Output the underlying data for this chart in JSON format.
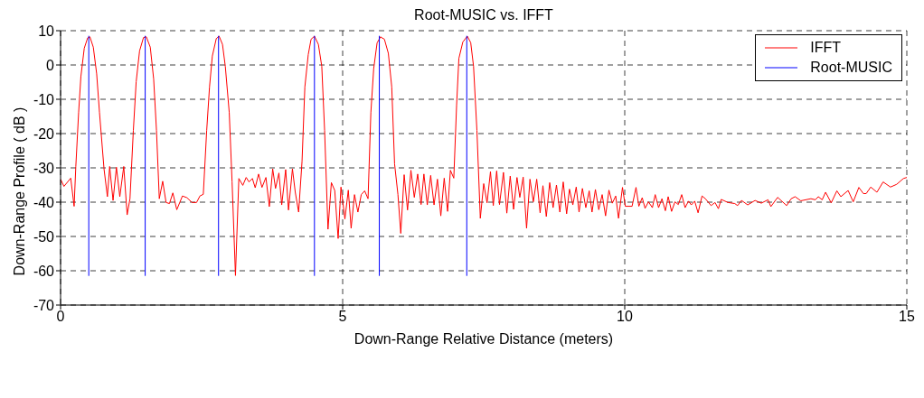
{
  "chart_data": {
    "type": "line",
    "title": "Root-MUSIC vs. IFFT",
    "xlabel": "Down-Range Relative Distance (meters)",
    "ylabel": "Down-Range Profile ( dB )",
    "xlim": [
      0,
      15
    ],
    "xticks": [
      0,
      5,
      10,
      15
    ],
    "ylim": [
      -70,
      10
    ],
    "yticks": [
      -70,
      -60,
      -50,
      -40,
      -30,
      -20,
      -10,
      0,
      10
    ],
    "grid": true,
    "legend": "top right",
    "line_style": "solid",
    "series": [
      {
        "name": "IFFT",
        "color": "#ff0000",
        "x": [
          0,
          0.06,
          0.18,
          0.24,
          0.27,
          0.32,
          0.36,
          0.42,
          0.48,
          0.52,
          0.58,
          0.64,
          0.69,
          0.77,
          0.83,
          0.87,
          0.93,
          0.99,
          1.05,
          1.12,
          1.18,
          1.23,
          1.29,
          1.34,
          1.4,
          1.47,
          1.52,
          1.59,
          1.65,
          1.7,
          1.75,
          1.81,
          1.87,
          1.93,
          1.99,
          2.06,
          2.16,
          2.24,
          2.33,
          2.41,
          2.47,
          2.53,
          2.59,
          2.64,
          2.69,
          2.76,
          2.81,
          2.87,
          2.92,
          2.99,
          3.04,
          3.1,
          3.16,
          3.23,
          3.29,
          3.34,
          3.4,
          3.45,
          3.51,
          3.57,
          3.64,
          3.7,
          3.76,
          3.81,
          3.87,
          3.92,
          3.99,
          4.04,
          4.11,
          4.16,
          4.22,
          4.28,
          4.33,
          4.39,
          4.44,
          4.5,
          4.57,
          4.63,
          4.68,
          4.74,
          4.8,
          4.86,
          4.92,
          4.97,
          5.04,
          5.1,
          5.15,
          5.21,
          5.27,
          5.33,
          5.39,
          5.45,
          5.5,
          5.55,
          5.61,
          5.67,
          5.74,
          5.81,
          5.87,
          5.92,
          5.98,
          6.03,
          6.09,
          6.15,
          6.21,
          6.27,
          6.33,
          6.39,
          6.44,
          6.5,
          6.56,
          6.62,
          6.68,
          6.74,
          6.8,
          6.86,
          6.91,
          6.97,
          7.02,
          7.06,
          7.13,
          7.21,
          7.27,
          7.32,
          7.38,
          7.44,
          7.5,
          7.56,
          7.62,
          7.67,
          7.73,
          7.78,
          7.85,
          7.91,
          7.97,
          8.03,
          8.09,
          8.14,
          8.2,
          8.26,
          8.32,
          8.38,
          8.44,
          8.5,
          8.55,
          8.61,
          8.67,
          8.73,
          8.79,
          8.85,
          8.91,
          8.97,
          9.02,
          9.08,
          9.14,
          9.19,
          9.25,
          9.31,
          9.37,
          9.42,
          9.48,
          9.54,
          9.6,
          9.66,
          9.72,
          9.78,
          9.84,
          9.89,
          9.96,
          10.01,
          10.13,
          10.2,
          10.25,
          10.31,
          10.36,
          10.42,
          10.49,
          10.54,
          10.6,
          10.66,
          10.72,
          10.77,
          10.83,
          10.89,
          10.95,
          11.01,
          11.07,
          11.13,
          11.18,
          11.24,
          11.3,
          11.37,
          11.43,
          11.53,
          11.6,
          11.66,
          11.71,
          11.83,
          11.95,
          12.0,
          12.07,
          12.18,
          12.31,
          12.42,
          12.54,
          12.59,
          12.71,
          12.87,
          12.95,
          13.02,
          13.12,
          13.3,
          13.38,
          13.43,
          13.5,
          13.56,
          13.66,
          13.76,
          13.83,
          13.96,
          14.05,
          14.15,
          14.23,
          14.28,
          14.36,
          14.47,
          14.58,
          14.71,
          14.82,
          14.94,
          15
        ],
        "values": [
          -33.3,
          -35.4,
          -33,
          -41.2,
          -29.6,
          -13.9,
          -3.4,
          4.9,
          7.9,
          8.2,
          5.2,
          -2.6,
          -13.9,
          -30.3,
          -38.4,
          -29.6,
          -39.5,
          -29.8,
          -38.4,
          -29.6,
          -43.7,
          -39,
          -19.1,
          -4.9,
          4.1,
          8,
          8.2,
          5.2,
          -4.1,
          -19.1,
          -39,
          -33.9,
          -40.1,
          -40.4,
          -37.3,
          -42.2,
          -38.2,
          -38.7,
          -40.1,
          -40.1,
          -38.2,
          -37.7,
          -19.1,
          -6.4,
          2.6,
          7.7,
          8.4,
          6,
          -0.4,
          -13.9,
          -34.1,
          -61.4,
          -33.1,
          -35.1,
          -32.8,
          -34.1,
          -33.1,
          -35.8,
          -31.8,
          -35.7,
          -32.8,
          -41.3,
          -30.3,
          -36,
          -31.5,
          -40.8,
          -30.5,
          -42.3,
          -30.3,
          -37.1,
          -42.9,
          -28.1,
          -6.4,
          3,
          7.5,
          8.4,
          6,
          -0.4,
          -19.1,
          -47.9,
          -34.3,
          -36.6,
          -50.6,
          -35.6,
          -44.9,
          -36.5,
          -47.6,
          -37.8,
          -42.9,
          -37.8,
          -36.7,
          -39,
          -13.9,
          -1.1,
          6.4,
          8.2,
          7.5,
          3.4,
          -6.4,
          -28.8,
          -37.8,
          -49.1,
          -32,
          -42.3,
          -30.7,
          -38.6,
          -31.8,
          -40.7,
          -31.8,
          -40.8,
          -32.2,
          -40.8,
          -33.3,
          -44,
          -33,
          -42.7,
          -30.7,
          -33,
          -11.6,
          1.9,
          6.7,
          8.4,
          6.5,
          -0.4,
          -19.1,
          -44.7,
          -34.6,
          -40.2,
          -31.1,
          -41,
          -30.9,
          -40.7,
          -31.3,
          -43.2,
          -32.4,
          -42.1,
          -32.8,
          -38.6,
          -32.7,
          -47.6,
          -33.3,
          -39.9,
          -33.3,
          -43.1,
          -35.2,
          -44.2,
          -34.3,
          -41.6,
          -35,
          -42.9,
          -34.1,
          -43.4,
          -36.2,
          -40.8,
          -35.6,
          -42.9,
          -36,
          -41.6,
          -36.7,
          -42.9,
          -36.3,
          -42.2,
          -37.8,
          -44,
          -36.5,
          -40.3,
          -38.2,
          -44.7,
          -35.7,
          -41.2,
          -41.2,
          -35.7,
          -41.2,
          -38.7,
          -41.8,
          -39.9,
          -41.6,
          -37.8,
          -41.6,
          -39,
          -42.5,
          -38.4,
          -42.7,
          -39.9,
          -40.7,
          -37.8,
          -41.6,
          -39.7,
          -40.8,
          -39.7,
          -43.1,
          -38.2,
          -39,
          -41,
          -40.1,
          -41.9,
          -39.2,
          -40.1,
          -40.4,
          -41,
          -39.5,
          -40.8,
          -39.5,
          -40.3,
          -39.3,
          -41.3,
          -38.6,
          -41,
          -39,
          -38.4,
          -39.6,
          -39,
          -39.3,
          -38.4,
          -39.3,
          -37.1,
          -40.2,
          -36.7,
          -38.4,
          -36.6,
          -39.9,
          -35.7,
          -37.5,
          -37.5,
          -35.6,
          -37.1,
          -34.1,
          -35.6,
          -34.8,
          -33.1,
          -32.8
        ]
      },
      {
        "name": "Root-MUSIC",
        "color": "#0000ff",
        "x": [
          0.5,
          0.5,
          null,
          1.5,
          1.5,
          null,
          2.8,
          2.8,
          null,
          4.5,
          4.5,
          null,
          5.65,
          5.65,
          null,
          7.2,
          7.2
        ],
        "values": [
          -61.5,
          8.5,
          null,
          -61.5,
          8.5,
          null,
          -61.5,
          8.5,
          null,
          -61.5,
          8.5,
          null,
          -61.5,
          8.5,
          null,
          -61.5,
          8.5
        ]
      }
    ]
  }
}
